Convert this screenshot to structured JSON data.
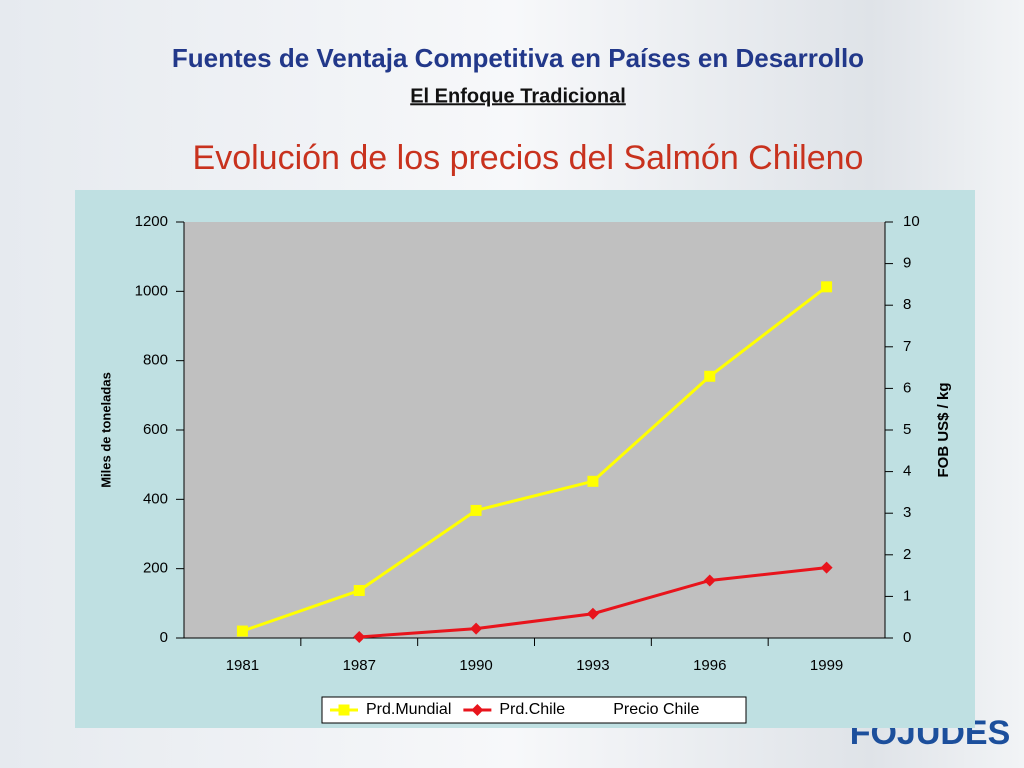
{
  "slide": {
    "title": "Fuentes de Ventaja Competitiva en Países en Desarrollo",
    "subtitle": "El Enfoque Tradicional",
    "logo": "FOJUDES"
  },
  "chart_data": {
    "type": "line",
    "title": "Evolución de los precios del Salmón Chileno",
    "categories": [
      "1981",
      "1987",
      "1990",
      "1993",
      "1996",
      "1999"
    ],
    "series": [
      {
        "name": "Prd.Mundial",
        "color": "#ffff00",
        "marker": "square",
        "values": [
          20,
          137,
          368,
          452,
          755,
          1013
        ]
      },
      {
        "name": "Prd.Chile",
        "color": "#e8141c",
        "marker": "diamond",
        "values": [
          null,
          3,
          27,
          70,
          166,
          203
        ]
      },
      {
        "name": "Precio Chile",
        "axis": "y2",
        "values": [
          null,
          null,
          null,
          null,
          null,
          null
        ]
      }
    ],
    "ylabel": "Miles de toneladas",
    "y2label": "FOB US$ / kg",
    "ylim": [
      0,
      1200
    ],
    "yticks": [
      0,
      200,
      400,
      600,
      800,
      1000,
      1200
    ],
    "y2lim": [
      0,
      10
    ],
    "y2ticks": [
      0,
      1,
      2,
      3,
      4,
      5,
      6,
      7,
      8,
      9,
      10
    ],
    "legend": "bottom"
  }
}
